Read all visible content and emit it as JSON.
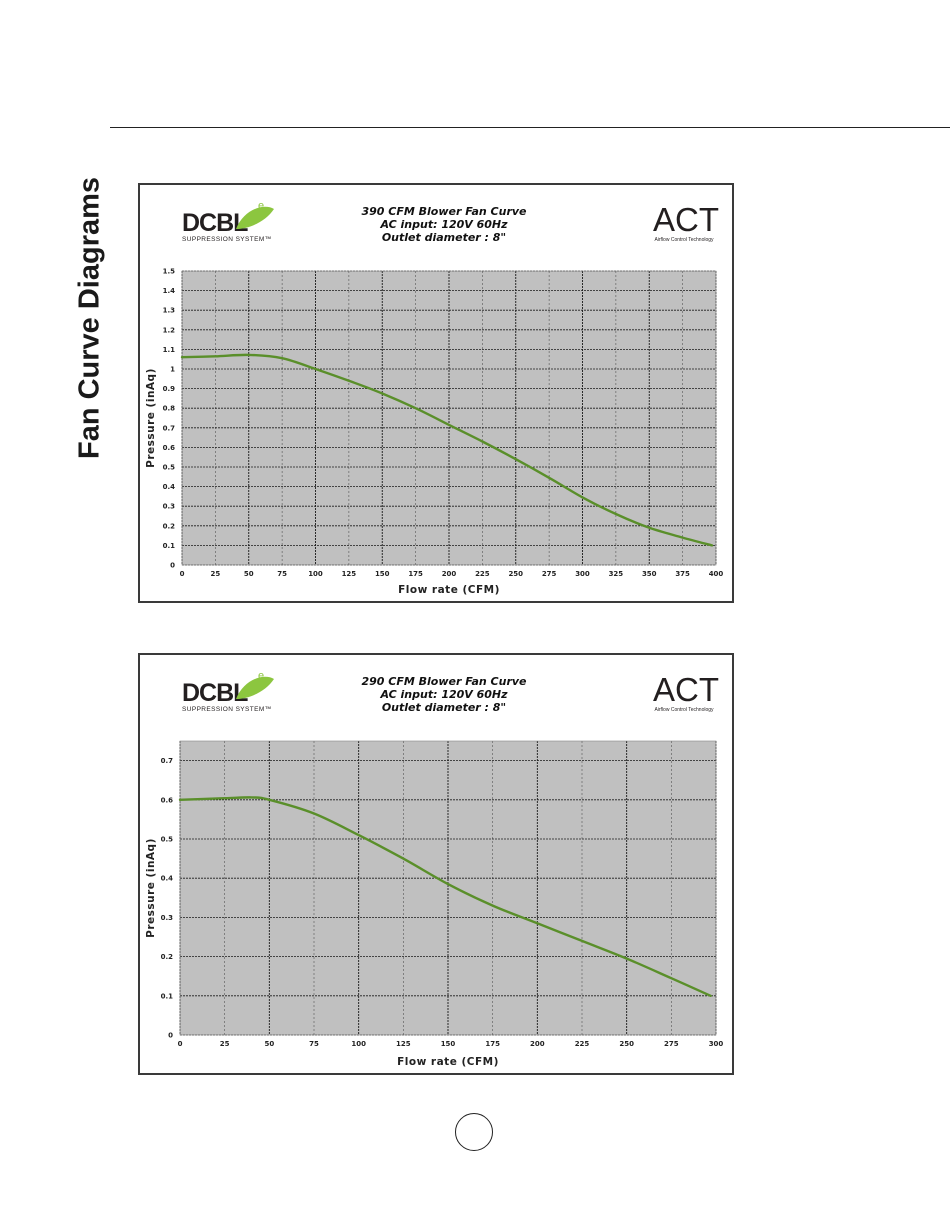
{
  "page": {
    "heading": "Fan Curve Diagrams"
  },
  "brand": {
    "dcbl_text": "DCBL",
    "dcbl_superscript": "e",
    "dcbl_tagline": "SUPPRESSION SYSTEM™",
    "act_text": "ACT",
    "act_tagline": "Airflow Control Technology",
    "leaf_color": "#8cc63f",
    "text_color": "#231f20"
  },
  "chart_data": [
    {
      "type": "line",
      "title": "390 CFM Blower Fan Curve",
      "subtitle_lines": [
        "AC input: 120V  60Hz",
        "Outlet diameter : 8\""
      ],
      "xlabel": "Flow rate (CFM)",
      "ylabel": "Pressure (inAq)",
      "xlim": [
        0,
        400
      ],
      "ylim": [
        0,
        1.5
      ],
      "xticks": [
        0,
        25,
        50,
        75,
        100,
        125,
        150,
        175,
        200,
        225,
        250,
        275,
        300,
        325,
        350,
        375,
        400
      ],
      "yticks": [
        0,
        0.1,
        0.2,
        0.3,
        0.4,
        0.5,
        0.6,
        0.7,
        0.8,
        0.9,
        1,
        1.1,
        1.2,
        1.3,
        1.4,
        1.5
      ],
      "grid": true,
      "plot_bg": "#c0c0c0",
      "line_color": "#5a8f2a",
      "series": [
        {
          "x": [
            0,
            25,
            50,
            75,
            100,
            125,
            150,
            175,
            200,
            225,
            250,
            275,
            300,
            325,
            350,
            375,
            397
          ],
          "y": [
            1.06,
            1.065,
            1.072,
            1.055,
            1.0,
            0.94,
            0.875,
            0.8,
            0.715,
            0.63,
            0.54,
            0.445,
            0.345,
            0.26,
            0.19,
            0.14,
            0.1
          ]
        }
      ]
    },
    {
      "type": "line",
      "title": "290 CFM Blower Fan Curve",
      "subtitle_lines": [
        "AC input: 120V  60Hz",
        "Outlet diameter : 8\""
      ],
      "xlabel": "Flow rate (CFM)",
      "ylabel": "Pressure (inAq)",
      "xlim": [
        0,
        300
      ],
      "ylim": [
        0,
        0.75
      ],
      "xticks": [
        0,
        25,
        50,
        75,
        100,
        125,
        150,
        175,
        200,
        225,
        250,
        275,
        300
      ],
      "yticks": [
        0,
        0.1,
        0.2,
        0.3,
        0.4,
        0.5,
        0.6,
        0.7
      ],
      "grid": true,
      "plot_bg": "#c0c0c0",
      "line_color": "#5a8f2a",
      "series": [
        {
          "x": [
            0,
            25,
            40,
            50,
            75,
            100,
            125,
            150,
            175,
            200,
            225,
            250,
            275,
            297
          ],
          "y": [
            0.6,
            0.604,
            0.606,
            0.6,
            0.565,
            0.51,
            0.45,
            0.385,
            0.33,
            0.285,
            0.24,
            0.195,
            0.145,
            0.1
          ]
        }
      ]
    }
  ]
}
